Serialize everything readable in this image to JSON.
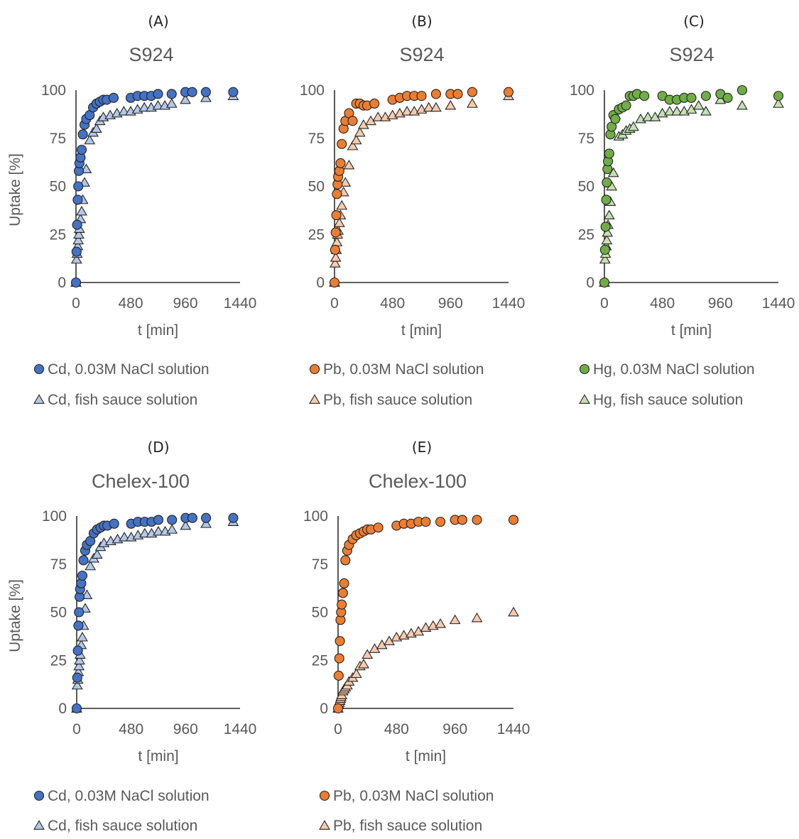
{
  "colors": {
    "text": "#595959",
    "axis": "#000000",
    "Cd": {
      "circle": "#4472C4",
      "triangle": "#B4C7E7"
    },
    "Pb": {
      "circle": "#ED7D31",
      "triangle": "#F8CBAD"
    },
    "Hg": {
      "circle": "#70AD47",
      "triangle": "#C5E0B4"
    }
  },
  "chart_data": [
    {
      "type": "scatter",
      "panel": "(A)",
      "title": "S924",
      "xlabel": "t [min]",
      "ylabel": "Uptake [%]",
      "xlim": [
        0,
        1440
      ],
      "ylim": [
        0,
        100
      ],
      "xticks": [
        "0",
        "480",
        "960",
        "1440"
      ],
      "yticks": [
        "0",
        "25",
        "50",
        "75",
        "100"
      ],
      "grid": false,
      "legend_position": "bottom",
      "series": [
        {
          "name": "Cd, 0.03M NaCl solution",
          "metal": "Cd",
          "marker": "circle",
          "x": [
            0,
            5,
            10,
            15,
            20,
            25,
            30,
            40,
            50,
            60,
            75,
            90,
            120,
            150,
            180,
            210,
            240,
            270,
            330,
            480,
            540,
            600,
            660,
            720,
            840,
            960,
            1020,
            1140,
            1380
          ],
          "y": [
            0,
            16,
            30,
            43,
            50,
            58,
            62,
            65,
            69,
            77,
            82,
            85,
            87,
            91,
            93,
            94,
            95,
            95,
            96,
            96,
            97,
            97,
            97,
            98,
            98,
            99,
            99,
            99,
            99
          ]
        },
        {
          "name": "Cd, fish sauce solution",
          "metal": "Cd",
          "marker": "triangle",
          "x": [
            0,
            5,
            10,
            15,
            20,
            25,
            30,
            40,
            50,
            60,
            75,
            90,
            120,
            150,
            180,
            210,
            240,
            300,
            360,
            420,
            480,
            540,
            600,
            660,
            720,
            780,
            840,
            960,
            1140,
            1380
          ],
          "y": [
            0,
            12,
            15,
            19,
            22,
            25,
            28,
            33,
            37,
            43,
            52,
            59,
            74,
            78,
            80,
            84,
            86,
            87,
            88,
            89,
            89,
            90,
            91,
            91,
            92,
            92,
            93,
            95,
            96,
            97
          ]
        }
      ]
    },
    {
      "type": "scatter",
      "panel": "(B)",
      "title": "S924",
      "xlabel": "t [min]",
      "ylabel": "",
      "xlim": [
        0,
        1440
      ],
      "ylim": [
        0,
        100
      ],
      "xticks": [
        "0",
        "480",
        "960",
        "1440"
      ],
      "yticks": [
        "0",
        "25",
        "50",
        "75",
        "100"
      ],
      "grid": false,
      "legend_position": "bottom",
      "series": [
        {
          "name": "Pb, 0.03M NaCl solution",
          "metal": "Pb",
          "marker": "circle",
          "x": [
            0,
            5,
            10,
            15,
            20,
            25,
            30,
            40,
            50,
            60,
            75,
            90,
            120,
            150,
            180,
            210,
            240,
            270,
            330,
            480,
            540,
            600,
            660,
            720,
            840,
            960,
            1020,
            1140,
            1440
          ],
          "y": [
            0,
            17,
            26,
            35,
            46,
            51,
            55,
            58,
            62,
            72,
            80,
            84,
            88,
            84,
            93,
            93,
            92,
            92,
            93,
            95,
            96,
            97,
            97,
            97,
            98,
            98,
            98,
            99,
            99
          ]
        },
        {
          "name": "Pb, fish sauce solution",
          "metal": "Pb",
          "marker": "triangle",
          "x": [
            0,
            5,
            10,
            15,
            20,
            25,
            30,
            40,
            50,
            60,
            75,
            90,
            120,
            150,
            180,
            210,
            240,
            300,
            360,
            420,
            480,
            540,
            600,
            660,
            720,
            780,
            840,
            960,
            1140,
            1440
          ],
          "y": [
            0,
            10,
            13,
            17,
            21,
            25,
            27,
            31,
            35,
            40,
            47,
            52,
            61,
            71,
            74,
            78,
            82,
            84,
            86,
            86,
            87,
            88,
            89,
            89,
            90,
            91,
            91,
            92,
            93,
            97
          ]
        }
      ]
    },
    {
      "type": "scatter",
      "panel": "(C)",
      "title": "S924",
      "xlabel": "t [min]",
      "ylabel": "",
      "xlim": [
        0,
        1440
      ],
      "ylim": [
        0,
        100
      ],
      "xticks": [
        "0",
        "480",
        "960",
        "1440"
      ],
      "yticks": [
        "0",
        "25",
        "50",
        "75",
        "100"
      ],
      "grid": false,
      "legend_position": "bottom",
      "series": [
        {
          "name": "Hg, 0.03M NaCl solution",
          "metal": "Hg",
          "marker": "circle",
          "x": [
            0,
            5,
            10,
            15,
            20,
            25,
            30,
            40,
            50,
            60,
            75,
            90,
            120,
            150,
            180,
            210,
            240,
            270,
            330,
            480,
            540,
            600,
            660,
            720,
            840,
            960,
            1020,
            1140,
            1440
          ],
          "y": [
            0,
            17,
            29,
            43,
            52,
            59,
            63,
            67,
            77,
            81,
            87,
            85,
            90,
            91,
            92,
            97,
            97,
            98,
            97,
            97,
            95,
            95,
            96,
            96,
            97,
            98,
            96,
            100,
            97
          ]
        },
        {
          "name": "Hg, fish sauce solution",
          "metal": "Hg",
          "marker": "triangle",
          "x": [
            0,
            5,
            10,
            15,
            20,
            25,
            30,
            40,
            50,
            60,
            75,
            90,
            120,
            150,
            180,
            210,
            240,
            300,
            360,
            420,
            480,
            540,
            600,
            660,
            720,
            780,
            840,
            960,
            1140,
            1440
          ],
          "y": [
            0,
            12,
            15,
            19,
            22,
            26,
            30,
            35,
            42,
            50,
            57,
            87,
            76,
            77,
            79,
            80,
            81,
            85,
            86,
            86,
            88,
            89,
            89,
            89,
            90,
            92,
            89,
            95,
            92,
            93
          ]
        }
      ]
    },
    {
      "type": "scatter",
      "panel": "(D)",
      "title": "Chelex-100",
      "xlabel": "t [min]",
      "ylabel": "Uptake [%]",
      "xlim": [
        0,
        1440
      ],
      "ylim": [
        0,
        100
      ],
      "xticks": [
        "0",
        "480",
        "960",
        "1440"
      ],
      "yticks": [
        "0",
        "25",
        "50",
        "75",
        "100"
      ],
      "grid": false,
      "legend_position": "bottom",
      "series": [
        {
          "name": "Cd, 0.03M NaCl solution",
          "metal": "Cd",
          "marker": "circle",
          "x": [
            0,
            5,
            10,
            15,
            20,
            25,
            30,
            40,
            50,
            60,
            75,
            90,
            120,
            150,
            180,
            210,
            240,
            270,
            330,
            480,
            540,
            600,
            660,
            720,
            840,
            960,
            1020,
            1140,
            1380
          ],
          "y": [
            0,
            16,
            30,
            43,
            50,
            58,
            62,
            65,
            69,
            77,
            82,
            85,
            87,
            91,
            93,
            94,
            95,
            95,
            96,
            96,
            97,
            97,
            97,
            98,
            98,
            99,
            99,
            99,
            99
          ]
        },
        {
          "name": "Cd, fish sauce solution",
          "metal": "Cd",
          "marker": "triangle",
          "x": [
            0,
            5,
            10,
            15,
            20,
            25,
            30,
            40,
            50,
            60,
            75,
            90,
            120,
            150,
            180,
            210,
            240,
            300,
            360,
            420,
            480,
            540,
            600,
            660,
            720,
            780,
            840,
            960,
            1140,
            1380
          ],
          "y": [
            0,
            12,
            15,
            19,
            22,
            25,
            28,
            33,
            37,
            43,
            52,
            59,
            74,
            78,
            80,
            84,
            86,
            87,
            88,
            89,
            89,
            90,
            91,
            91,
            92,
            92,
            93,
            95,
            96,
            97
          ]
        }
      ]
    },
    {
      "type": "scatter",
      "panel": "(E)",
      "title": "Chelex-100",
      "xlabel": "t [min]",
      "ylabel": "",
      "xlim": [
        0,
        1440
      ],
      "ylim": [
        0,
        100
      ],
      "xticks": [
        "0",
        "480",
        "960",
        "1440"
      ],
      "yticks": [
        "0",
        "25",
        "50",
        "75",
        "100"
      ],
      "grid": false,
      "legend_position": "bottom",
      "series": [
        {
          "name": "Pb, 0.03M NaCl solution",
          "metal": "Pb",
          "marker": "circle",
          "x": [
            0,
            5,
            10,
            15,
            20,
            25,
            30,
            40,
            50,
            60,
            75,
            90,
            120,
            150,
            180,
            210,
            240,
            270,
            330,
            480,
            540,
            600,
            660,
            720,
            840,
            960,
            1020,
            1140,
            1440
          ],
          "y": [
            0,
            17,
            26,
            35,
            46,
            50,
            54,
            60,
            65,
            77,
            82,
            85,
            88,
            90,
            91,
            92,
            93,
            93,
            94,
            95,
            96,
            96,
            97,
            97,
            97,
            98,
            98,
            98,
            98
          ]
        },
        {
          "name": "Pb, fish sauce solution",
          "metal": "Pb",
          "marker": "triangle",
          "x": [
            0,
            5,
            10,
            15,
            20,
            25,
            30,
            40,
            50,
            60,
            75,
            90,
            120,
            150,
            180,
            210,
            240,
            300,
            360,
            420,
            480,
            540,
            600,
            660,
            720,
            780,
            840,
            960,
            1140,
            1440
          ],
          "y": [
            0,
            2,
            3,
            4,
            5,
            6,
            7,
            9,
            10,
            11,
            12,
            14,
            16,
            18,
            22,
            23,
            28,
            31,
            33,
            35,
            37,
            38,
            39,
            40,
            42,
            43,
            44,
            46,
            47,
            50
          ]
        }
      ]
    }
  ]
}
